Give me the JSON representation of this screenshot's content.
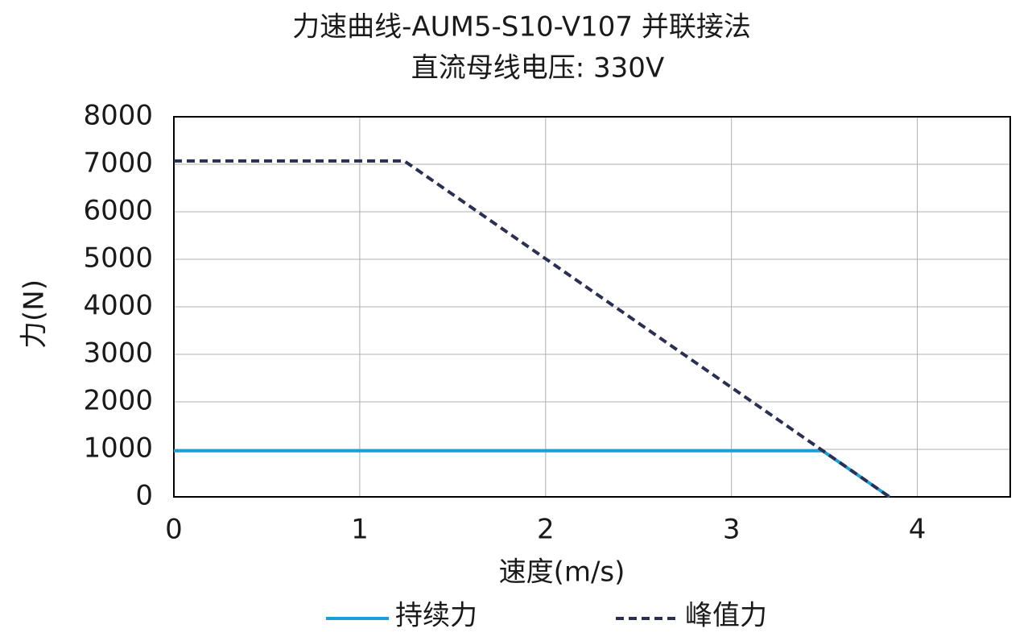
{
  "chart_data": {
    "type": "line",
    "title": "力速曲线-AUM5-S10-V107 并联接法",
    "subtitle": "直流母线电压: 330V",
    "x_label": "速度(m/s)",
    "y_label": "力(N)",
    "xlim": [
      0,
      4.5
    ],
    "xticks": [
      0,
      1,
      2,
      3,
      4
    ],
    "ylim": [
      0,
      8000
    ],
    "yticks": [
      0,
      1000,
      2000,
      3000,
      4000,
      5000,
      6000,
      7000,
      8000
    ],
    "grid": true,
    "legend": "bottom",
    "series": [
      {
        "name": "持续力",
        "color": "#1a9fd8",
        "dash": "solid",
        "x": [
          0,
          3.49,
          3.85
        ],
        "values": [
          970,
          970,
          0
        ]
      },
      {
        "name": "峰值力",
        "color": "#2b2f52",
        "dash": "dashed",
        "x": [
          0,
          1.24,
          3.85
        ],
        "values": [
          7070,
          7070,
          0
        ]
      }
    ]
  }
}
